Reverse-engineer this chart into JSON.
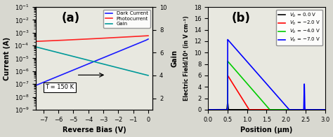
{
  "panel_a": {
    "title": "(a)",
    "xlabel": "Reverse Bias (V)",
    "ylabel_left": "Current (A)",
    "ylabel_right": "Gain",
    "xlim": [
      -7.5,
      0.3
    ],
    "ylim_current": [
      1e-09,
      0.1
    ],
    "ylim_gain": [
      1,
      10
    ],
    "yticks_gain": [
      2,
      4,
      6,
      8,
      10
    ],
    "temp_label": "T = 150 K",
    "legend": [
      "Dark Current",
      "Photocurrent",
      "Gain"
    ],
    "dark_color": "#1a1aff",
    "photo_color": "#ff2222",
    "gain_color": "#009999",
    "bg_color": "#e8e8e0"
  },
  "panel_b": {
    "title": "(b)",
    "xlabel": "Position (μm)",
    "ylabel": "Electric Field/10⁴ (in V cm⁻¹)",
    "xlim": [
      0.0,
      3.0
    ],
    "ylim": [
      0,
      18
    ],
    "yticks": [
      0,
      2,
      4,
      6,
      8,
      10,
      12,
      14,
      16,
      18
    ],
    "colors": [
      "#000000",
      "#ff0000",
      "#00cc00",
      "#0000ff"
    ],
    "bg_color": "#e8e8e0"
  }
}
